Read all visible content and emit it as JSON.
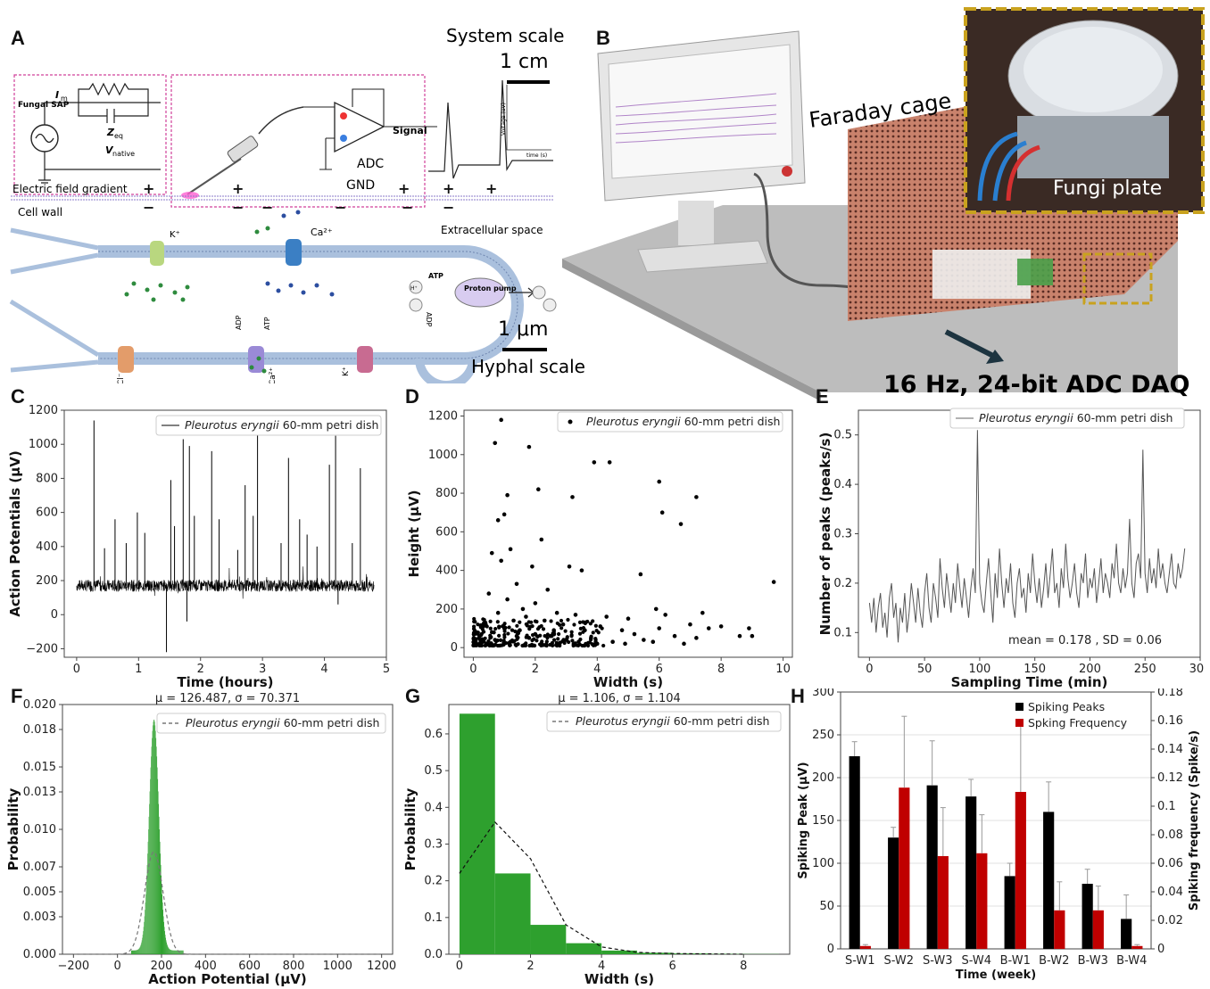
{
  "panels": {
    "A": {
      "label": "A",
      "system_scale": "System scale",
      "system_scale_bar": "1 cm",
      "hyphal_scale": "Hyphal scale",
      "hyphal_scale_bar": "1 μm",
      "circuit": {
        "source": "Fungal SAP",
        "im": "I",
        "im_sub": "m",
        "zeq": "Z",
        "zeq_sub": "eq",
        "vnative": "V",
        "vnative_sub": "native",
        "signal": "Signal",
        "adc": "ADC",
        "gnd": "GND",
        "voltage_axis": "Voltage (uV)",
        "time_axis": "time (s)"
      },
      "electric_field": "Electric field gradient",
      "cell_wall": "Cell wall",
      "extracellular": "Extracellular space",
      "ions": [
        "K⁺",
        "Ca²⁺",
        "Cl⁻",
        "K⁺",
        "Ca²⁺",
        "ATP",
        "ADP",
        "ATP",
        "ADP",
        "H⁺"
      ],
      "proton_pump": "Proton pump"
    },
    "B": {
      "label": "B",
      "faraday": "Faraday cage",
      "fungi_plate": "Fungi plate",
      "daq": "16 Hz, 24-bit ADC DAQ"
    }
  },
  "chart_data": [
    {
      "id": "C",
      "type": "line",
      "label": "C",
      "legend": "Pleurotus eryngii 60-mm petri dish",
      "xlabel": "Time (hours)",
      "ylabel": "Action Potentials (μV)",
      "xlim": [
        -0.2,
        5.0
      ],
      "ylim": [
        -250,
        1200
      ],
      "xticks": [
        0,
        1,
        2,
        3,
        4,
        5
      ],
      "yticks": [
        -200,
        0,
        200,
        400,
        600,
        800,
        1000,
        1200
      ],
      "baseline": 170,
      "spikes": [
        {
          "x": 0.28,
          "y": 1140
        },
        {
          "x": 0.45,
          "y": 390
        },
        {
          "x": 0.62,
          "y": 560
        },
        {
          "x": 0.8,
          "y": 420
        },
        {
          "x": 0.98,
          "y": 600
        },
        {
          "x": 1.1,
          "y": 480
        },
        {
          "x": 1.45,
          "y": -220
        },
        {
          "x": 1.52,
          "y": 790
        },
        {
          "x": 1.58,
          "y": 520
        },
        {
          "x": 1.72,
          "y": 1030
        },
        {
          "x": 1.78,
          "y": -40
        },
        {
          "x": 1.82,
          "y": 990
        },
        {
          "x": 1.9,
          "y": 580
        },
        {
          "x": 2.18,
          "y": 960
        },
        {
          "x": 2.3,
          "y": 560
        },
        {
          "x": 2.6,
          "y": 380
        },
        {
          "x": 2.72,
          "y": 760
        },
        {
          "x": 2.85,
          "y": 580
        },
        {
          "x": 2.92,
          "y": 1060
        },
        {
          "x": 3.3,
          "y": 420
        },
        {
          "x": 3.42,
          "y": 920
        },
        {
          "x": 3.6,
          "y": 560
        },
        {
          "x": 3.72,
          "y": 470
        },
        {
          "x": 3.88,
          "y": 400
        },
        {
          "x": 4.08,
          "y": 880
        },
        {
          "x": 4.18,
          "y": 1050
        },
        {
          "x": 4.22,
          "y": 60
        },
        {
          "x": 4.45,
          "y": 420
        },
        {
          "x": 4.58,
          "y": 860
        }
      ]
    },
    {
      "id": "D",
      "type": "scatter",
      "label": "D",
      "legend": "Pleurotus eryngii 60-mm petri dish",
      "xlabel": "Width (s)",
      "ylabel": "Height (μV)",
      "xlim": [
        -0.3,
        10.3
      ],
      "ylim": [
        -50,
        1230
      ],
      "xticks": [
        0,
        2,
        4,
        6,
        8,
        10
      ],
      "yticks": [
        0,
        200,
        400,
        600,
        800,
        1000,
        1200
      ],
      "points": [
        {
          "x": 0.9,
          "y": 1180
        },
        {
          "x": 0.7,
          "y": 1060
        },
        {
          "x": 1.8,
          "y": 1040
        },
        {
          "x": 3.9,
          "y": 960
        },
        {
          "x": 4.4,
          "y": 960
        },
        {
          "x": 6.0,
          "y": 860
        },
        {
          "x": 2.1,
          "y": 820
        },
        {
          "x": 1.1,
          "y": 790
        },
        {
          "x": 3.2,
          "y": 780
        },
        {
          "x": 7.2,
          "y": 780
        },
        {
          "x": 1.0,
          "y": 690
        },
        {
          "x": 6.1,
          "y": 700
        },
        {
          "x": 0.8,
          "y": 660
        },
        {
          "x": 6.7,
          "y": 640
        },
        {
          "x": 0.6,
          "y": 490
        },
        {
          "x": 1.2,
          "y": 510
        },
        {
          "x": 2.2,
          "y": 560
        },
        {
          "x": 0.9,
          "y": 450
        },
        {
          "x": 1.9,
          "y": 420
        },
        {
          "x": 3.1,
          "y": 420
        },
        {
          "x": 3.5,
          "y": 400
        },
        {
          "x": 5.4,
          "y": 380
        },
        {
          "x": 9.7,
          "y": 340
        },
        {
          "x": 1.4,
          "y": 330
        },
        {
          "x": 2.4,
          "y": 300
        },
        {
          "x": 0.5,
          "y": 280
        },
        {
          "x": 1.1,
          "y": 250
        },
        {
          "x": 2.0,
          "y": 230
        },
        {
          "x": 1.6,
          "y": 200
        },
        {
          "x": 2.7,
          "y": 180
        },
        {
          "x": 3.3,
          "y": 170
        },
        {
          "x": 4.3,
          "y": 160
        },
        {
          "x": 5.0,
          "y": 150
        },
        {
          "x": 5.9,
          "y": 200
        },
        {
          "x": 6.2,
          "y": 170
        },
        {
          "x": 7.4,
          "y": 180
        },
        {
          "x": 7.0,
          "y": 120
        },
        {
          "x": 7.6,
          "y": 100
        },
        {
          "x": 8.0,
          "y": 110
        },
        {
          "x": 8.6,
          "y": 60
        },
        {
          "x": 8.9,
          "y": 100
        },
        {
          "x": 9.0,
          "y": 60
        },
        {
          "x": 6.5,
          "y": 60
        },
        {
          "x": 7.2,
          "y": 50
        },
        {
          "x": 5.5,
          "y": 40
        },
        {
          "x": 4.8,
          "y": 90
        },
        {
          "x": 4.1,
          "y": 110
        },
        {
          "x": 3.6,
          "y": 90
        },
        {
          "x": 2.9,
          "y": 120
        },
        {
          "x": 2.3,
          "y": 140
        },
        {
          "x": 1.7,
          "y": 160
        },
        {
          "x": 1.3,
          "y": 140
        },
        {
          "x": 0.8,
          "y": 180
        },
        {
          "x": 0.4,
          "y": 120
        },
        {
          "x": 0.2,
          "y": 60
        },
        {
          "x": 0.3,
          "y": 30
        },
        {
          "x": 0.6,
          "y": 80
        },
        {
          "x": 1.0,
          "y": 100
        },
        {
          "x": 1.5,
          "y": 90
        },
        {
          "x": 2.5,
          "y": 60
        },
        {
          "x": 3.0,
          "y": 40
        },
        {
          "x": 3.8,
          "y": 50
        },
        {
          "x": 4.5,
          "y": 30
        },
        {
          "x": 5.2,
          "y": 70
        },
        {
          "x": 6.0,
          "y": 100
        },
        {
          "x": 0.7,
          "y": 40
        },
        {
          "x": 1.2,
          "y": 30
        },
        {
          "x": 1.8,
          "y": 50
        },
        {
          "x": 2.2,
          "y": 20
        },
        {
          "x": 2.8,
          "y": 25
        },
        {
          "x": 0.1,
          "y": 20
        },
        {
          "x": 0.5,
          "y": 15
        },
        {
          "x": 1.4,
          "y": 60
        },
        {
          "x": 2.0,
          "y": 70
        },
        {
          "x": 2.6,
          "y": 90
        },
        {
          "x": 3.4,
          "y": 30
        },
        {
          "x": 4.0,
          "y": 20
        },
        {
          "x": 4.9,
          "y": 20
        },
        {
          "x": 5.8,
          "y": 30
        },
        {
          "x": 6.8,
          "y": 20
        }
      ]
    },
    {
      "id": "E",
      "type": "line",
      "label": "E",
      "legend": "Pleurotus eryngii 60-mm petri dish",
      "annotation": "mean = 0.178 , SD = 0.06",
      "xlabel": "Sampling Time (min)",
      "ylabel": "Number of peaks (peaks/s)",
      "xlim": [
        -10,
        300
      ],
      "ylim": [
        0.05,
        0.55
      ],
      "xticks": [
        0,
        50,
        100,
        150,
        200,
        250,
        300
      ],
      "yticks": [
        0.1,
        0.2,
        0.3,
        0.4,
        0.5
      ],
      "x_step": 2,
      "y": [
        0.16,
        0.12,
        0.17,
        0.1,
        0.15,
        0.18,
        0.11,
        0.14,
        0.09,
        0.17,
        0.2,
        0.13,
        0.16,
        0.08,
        0.15,
        0.12,
        0.18,
        0.1,
        0.14,
        0.2,
        0.16,
        0.12,
        0.19,
        0.14,
        0.11,
        0.18,
        0.22,
        0.15,
        0.12,
        0.2,
        0.17,
        0.13,
        0.25,
        0.19,
        0.15,
        0.22,
        0.18,
        0.14,
        0.2,
        0.16,
        0.24,
        0.19,
        0.15,
        0.21,
        0.17,
        0.13,
        0.19,
        0.23,
        0.18,
        0.51,
        0.2,
        0.16,
        0.14,
        0.2,
        0.25,
        0.18,
        0.12,
        0.22,
        0.17,
        0.27,
        0.2,
        0.15,
        0.21,
        0.18,
        0.24,
        0.16,
        0.13,
        0.2,
        0.23,
        0.17,
        0.19,
        0.14,
        0.22,
        0.18,
        0.26,
        0.2,
        0.16,
        0.21,
        0.15,
        0.19,
        0.24,
        0.17,
        0.22,
        0.27,
        0.18,
        0.2,
        0.15,
        0.23,
        0.19,
        0.28,
        0.21,
        0.17,
        0.2,
        0.24,
        0.18,
        0.15,
        0.22,
        0.2,
        0.26,
        0.17,
        0.21,
        0.19,
        0.23,
        0.16,
        0.2,
        0.25,
        0.18,
        0.22,
        0.2,
        0.17,
        0.24,
        0.21,
        0.28,
        0.2,
        0.18,
        0.23,
        0.19,
        0.22,
        0.33,
        0.2,
        0.17,
        0.24,
        0.26,
        0.21,
        0.47,
        0.22,
        0.18,
        0.25,
        0.2,
        0.23,
        0.19,
        0.27,
        0.21,
        0.24,
        0.2,
        0.18,
        0.22,
        0.26,
        0.2,
        0.19,
        0.24,
        0.21,
        0.23,
        0.27
      ]
    },
    {
      "id": "F",
      "type": "area",
      "label": "F",
      "title_mu": "126.487",
      "title_sigma": "70.371",
      "legend": "Pleurotus eryngii 60-mm petri dish",
      "xlabel": "Action Potential (μV)",
      "ylabel": "Probability",
      "xlim": [
        -250,
        1250
      ],
      "ylim": [
        0,
        0.02
      ],
      "xticks": [
        -200,
        0,
        200,
        400,
        600,
        800,
        1000,
        1200
      ],
      "yticks": [
        0.0,
        0.003,
        0.005,
        0.007,
        0.01,
        0.013,
        0.015,
        0.018,
        0.02
      ],
      "ytick_labels": [
        "0.000",
        "0.003",
        "0.005",
        "0.007",
        "0.010",
        "0.013",
        "0.015",
        "0.018",
        "0.020"
      ],
      "hist_peak": {
        "center": 165,
        "peak": 0.0185,
        "spread": 22
      },
      "fit": {
        "center": 165,
        "peak": 0.0082,
        "spread": 42
      }
    },
    {
      "id": "G",
      "type": "bar",
      "label": "G",
      "title_mu": "1.106",
      "title_sigma": "1.104",
      "legend": "Pleurotus eryngii 60-mm petri dish",
      "xlabel": "Width (s)",
      "ylabel": "Probability",
      "xlim": [
        -0.3,
        9.3
      ],
      "ylim": [
        0,
        0.68
      ],
      "xticks": [
        0,
        2,
        4,
        6,
        8
      ],
      "yticks": [
        0.0,
        0.1,
        0.2,
        0.3,
        0.4,
        0.5,
        0.6
      ],
      "bins": [
        {
          "x0": 0,
          "x1": 1,
          "v": 0.655
        },
        {
          "x0": 1,
          "x1": 2,
          "v": 0.22
        },
        {
          "x0": 2,
          "x1": 3,
          "v": 0.08
        },
        {
          "x0": 3,
          "x1": 4,
          "v": 0.03
        },
        {
          "x0": 4,
          "x1": 5,
          "v": 0.01
        },
        {
          "x0": 5,
          "x1": 6,
          "v": 0.004
        },
        {
          "x0": 6,
          "x1": 7,
          "v": 0.002
        },
        {
          "x0": 7,
          "x1": 8,
          "v": 0.001
        },
        {
          "x0": 8,
          "x1": 9,
          "v": 0.0005
        }
      ],
      "fit": [
        {
          "x": 0,
          "y": 0.22
        },
        {
          "x": 1,
          "y": 0.36
        },
        {
          "x": 2,
          "y": 0.26
        },
        {
          "x": 3,
          "y": 0.08
        },
        {
          "x": 4,
          "y": 0.02
        },
        {
          "x": 5,
          "y": 0.005
        },
        {
          "x": 6,
          "y": 0.002
        },
        {
          "x": 8,
          "y": 0.0
        }
      ]
    },
    {
      "id": "H",
      "type": "bar",
      "label": "H",
      "xlabel": "Time (week)",
      "ylabel": "Spiking Peak (μV)",
      "ylabel2": "Spiking frequency (Spike/s)",
      "categories": [
        "S-W1",
        "S-W2",
        "S-W3",
        "S-W4",
        "B-W1",
        "B-W2",
        "B-W3",
        "B-W4"
      ],
      "ylim": [
        0,
        300
      ],
      "ylim2": [
        0,
        0.18
      ],
      "yticks": [
        0,
        50,
        100,
        150,
        200,
        250,
        300
      ],
      "yticks2": [
        0,
        0.02,
        0.04,
        0.06,
        0.08,
        0.1,
        0.12,
        0.14,
        0.16,
        0.18
      ],
      "ytick2_labels": [
        "0",
        "0.02",
        "0.04",
        "0.06",
        "0.08",
        "0.1",
        "0.12",
        "0.14",
        "0.16",
        "0.18"
      ],
      "series": [
        {
          "name": "Spiking Peaks",
          "color": "#000000",
          "values": [
            225,
            130,
            191,
            178,
            85,
            160,
            76,
            35
          ],
          "err": [
            17,
            12,
            52,
            20,
            15,
            35,
            17,
            28
          ]
        },
        {
          "name": "Spking Frequency",
          "color": "#c00000",
          "axis": "right",
          "values": [
            0.002,
            0.113,
            0.065,
            0.067,
            0.11,
            0.027,
            0.027,
            0.002
          ],
          "err": [
            0.001,
            0.05,
            0.034,
            0.027,
            0.048,
            0.02,
            0.017,
            0.001
          ]
        }
      ]
    }
  ]
}
